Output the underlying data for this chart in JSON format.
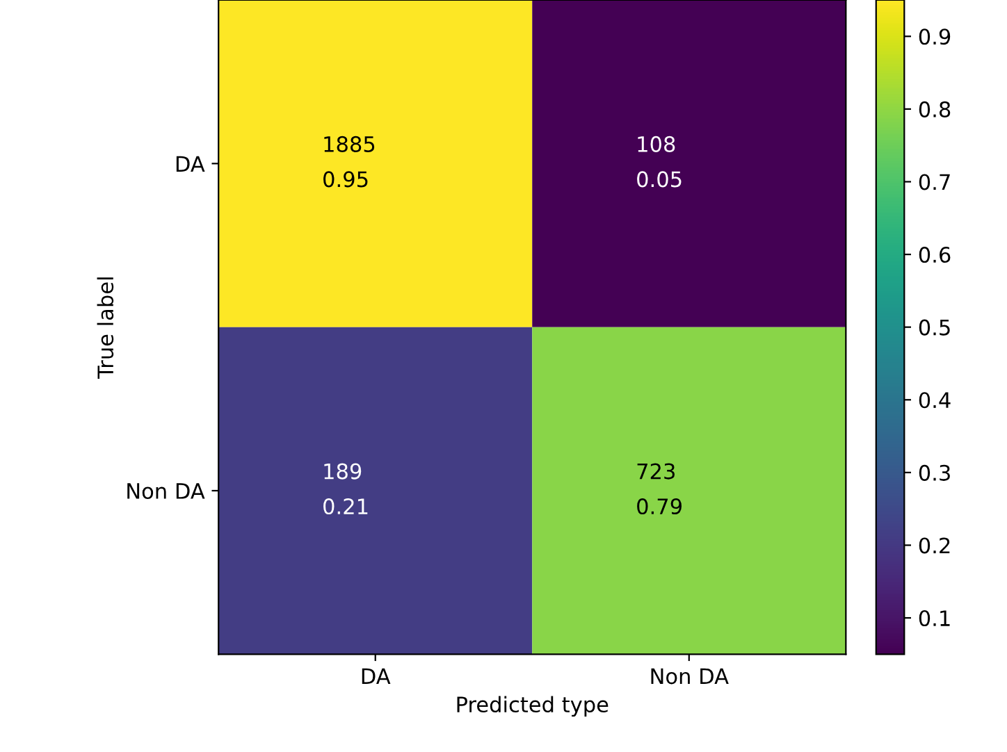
{
  "chart_data": {
    "type": "heatmap",
    "xlabel": "Predicted type",
    "ylabel": "True label",
    "categories": [
      "DA",
      "Non DA"
    ],
    "y_categories": [
      "DA",
      "Non DA"
    ],
    "cells": [
      [
        0.95,
        0.05
      ],
      [
        0.21,
        0.79
      ]
    ],
    "cell_labels": [
      [
        "1885\n0.95",
        "108\n0.05"
      ],
      [
        "189\n0.21",
        "723\n0.79"
      ]
    ],
    "clim": [
      0.05,
      0.95
    ],
    "cticks": [
      0.1,
      0.2,
      0.3,
      0.4,
      0.5,
      0.6,
      0.7,
      0.8,
      0.9
    ]
  }
}
